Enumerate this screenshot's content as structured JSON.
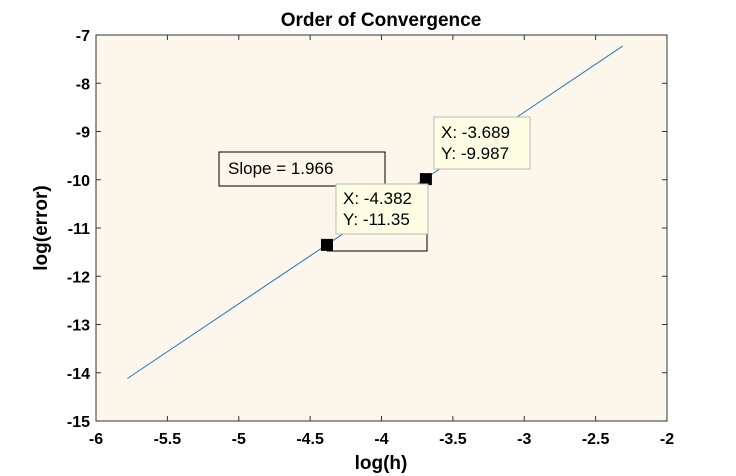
{
  "chart_data": {
    "type": "line",
    "title": "Order of Convergence",
    "xlabel": "log(h)",
    "ylabel": "log(error)",
    "xlim": [
      -6,
      -2
    ],
    "ylim": [
      -15,
      -7
    ],
    "xticks": [
      -6,
      -5.5,
      -5,
      -4.5,
      -4,
      -3.5,
      -3,
      -2.5,
      -2
    ],
    "yticks": [
      -15,
      -14,
      -13,
      -12,
      -11,
      -10,
      -9,
      -8,
      -7
    ],
    "xtick_labels": [
      "-6",
      "-5.5",
      "-5",
      "-4.5",
      "-4",
      "-3.5",
      "-3",
      "-2.5",
      "-2"
    ],
    "ytick_labels": [
      "-15",
      "-14",
      "-13",
      "-12",
      "-11",
      "-10",
      "-9",
      "-8",
      "-7"
    ],
    "grid": false,
    "background_color": "#fdf6ea",
    "line_color": "#1f77c4",
    "series": [
      {
        "x": [
          -5.78,
          -2.31
        ],
        "y": [
          -14.12,
          -7.23
        ]
      }
    ],
    "slope_annotation": "Slope = 1.966",
    "datatips": [
      {
        "x": -4.382,
        "y": -11.35,
        "x_text": "X: -4.382",
        "y_text": "Y: -11.35"
      },
      {
        "x": -3.689,
        "y": -9.987,
        "x_text": "X: -3.689",
        "y_text": "Y: -9.987"
      }
    ]
  }
}
